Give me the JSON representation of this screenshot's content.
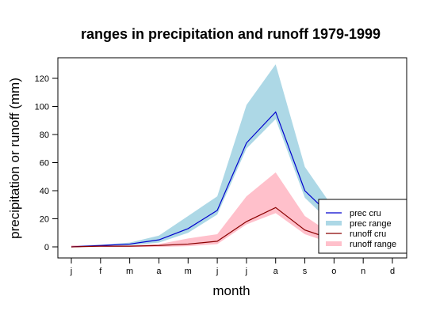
{
  "chart_data": {
    "type": "area",
    "title": "ranges in precipitation and runoff 1979-1999",
    "xlabel": "month",
    "ylabel": "precipitation or runoff (mm)",
    "categories": [
      "j",
      "f",
      "m",
      "a",
      "m",
      "j",
      "j",
      "a",
      "s",
      "o",
      "n",
      "d"
    ],
    "yticks": [
      0,
      20,
      40,
      60,
      80,
      100,
      120
    ],
    "ylim": [
      -4,
      134
    ],
    "grid": false,
    "legend_position": "bottom-right",
    "series": [
      {
        "name": "prec range",
        "kind": "band",
        "color": "#add8e6",
        "lower": [
          0,
          0.5,
          1,
          3,
          10,
          23,
          70,
          91,
          35,
          15,
          4,
          1
        ],
        "upper": [
          1,
          1.5,
          3,
          8,
          22,
          36,
          101,
          130,
          57,
          27,
          8,
          2
        ]
      },
      {
        "name": "runoff range",
        "kind": "band",
        "color": "#ffc0cb",
        "lower": [
          0,
          0,
          0,
          0,
          0.5,
          2,
          16,
          24,
          9,
          2,
          0.5,
          0
        ],
        "upper": [
          1,
          1,
          1,
          2,
          6,
          9,
          36,
          53,
          22,
          8,
          2,
          1
        ]
      },
      {
        "name": "prec cru",
        "kind": "line",
        "color": "#0000cd",
        "values": [
          0,
          1,
          2,
          5,
          13,
          26,
          74,
          96,
          40,
          20,
          6,
          1.5
        ]
      },
      {
        "name": "runoff cru",
        "kind": "line",
        "color": "#8b0000",
        "values": [
          0,
          0.5,
          0.5,
          1,
          2,
          4,
          18,
          28,
          12,
          5,
          1,
          0.5
        ]
      }
    ]
  }
}
